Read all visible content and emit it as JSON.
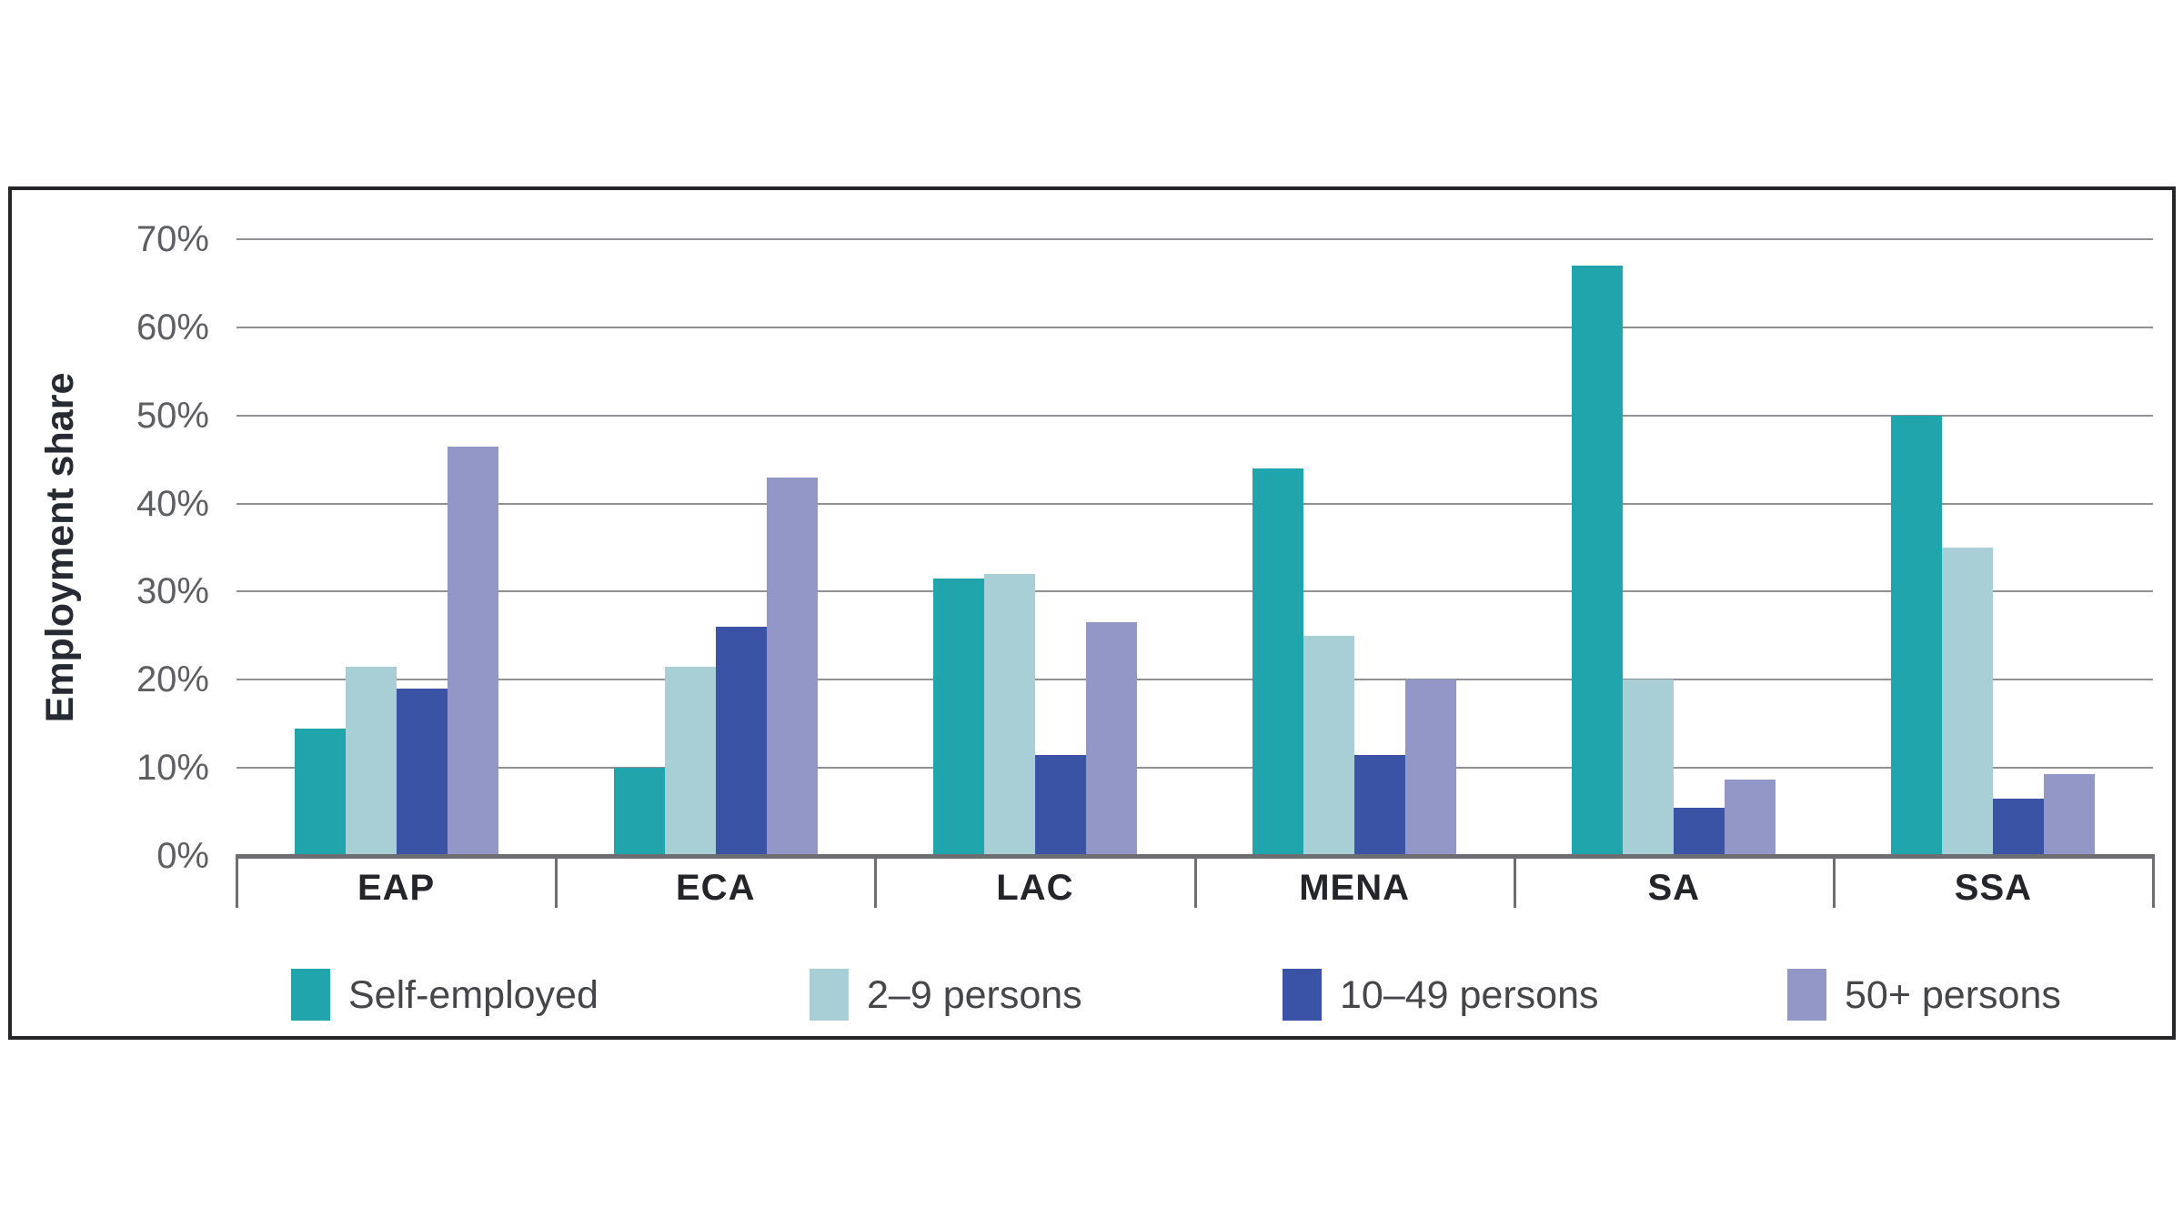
{
  "chart_data": {
    "type": "bar",
    "title": "",
    "xlabel": "",
    "ylabel": "Employment share",
    "categories": [
      "EAP",
      "ECA",
      "LAC",
      "MENA",
      "SA",
      "SSA"
    ],
    "series": [
      {
        "name": "Self-employed",
        "color": "#1fa5ab",
        "values": [
          14.5,
          10,
          31.5,
          44,
          67,
          50
        ]
      },
      {
        "name": "2–9 persons",
        "color": "#a7cfd5",
        "values": [
          21.5,
          21.5,
          32,
          25,
          20,
          35
        ]
      },
      {
        "name": "10–49 persons",
        "color": "#3a53a4",
        "values": [
          19,
          26,
          11.5,
          11.5,
          5.5,
          6.5
        ]
      },
      {
        "name": "50+ persons",
        "color": "#9297c8",
        "values": [
          46.5,
          43,
          26.5,
          20,
          8.7,
          9.3
        ]
      }
    ],
    "y_ticks": [
      "0%",
      "10%",
      "20%",
      "30%",
      "40%",
      "50%",
      "60%",
      "70%"
    ],
    "ylim": [
      0,
      70
    ],
    "grid": true,
    "legend_position": "bottom"
  }
}
